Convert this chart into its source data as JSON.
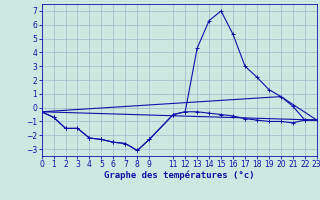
{
  "title": "Graphe des températures (°c)",
  "background_color": "#cce8e0",
  "grid_color": "#99bbcc",
  "line_color": "#1111aa",
  "xlim": [
    0,
    23
  ],
  "ylim": [
    -3.5,
    7.5
  ],
  "yticks": [
    -3,
    -2,
    -1,
    0,
    1,
    2,
    3,
    4,
    5,
    6,
    7
  ],
  "xticks": [
    0,
    1,
    2,
    3,
    4,
    5,
    6,
    7,
    8,
    9,
    11,
    12,
    13,
    14,
    15,
    16,
    17,
    18,
    19,
    20,
    21,
    22,
    23
  ],
  "xtick_labels": [
    "0",
    "1",
    "2",
    "3",
    "4",
    "5",
    "6",
    "7",
    "8",
    "9",
    "11",
    "12",
    "13",
    "14",
    "15",
    "16",
    "17",
    "18",
    "19",
    "20",
    "21",
    "22",
    "23"
  ],
  "curve1_x": [
    0,
    1,
    2,
    3,
    4,
    5,
    6,
    7,
    8,
    9,
    11,
    12,
    13,
    14,
    15,
    16,
    17,
    18,
    19,
    20,
    21,
    22,
    23
  ],
  "curve1_y": [
    -0.3,
    -0.7,
    -1.5,
    -1.5,
    -2.2,
    -2.3,
    -2.5,
    -2.6,
    -3.1,
    -2.3,
    -0.5,
    -0.3,
    4.3,
    6.3,
    7.0,
    5.3,
    3.0,
    2.2,
    1.3,
    0.8,
    0.1,
    -0.9,
    -0.9
  ],
  "curve2_x": [
    0,
    1,
    2,
    3,
    4,
    5,
    6,
    7,
    8,
    9,
    11,
    12,
    13,
    14,
    15,
    16,
    17,
    18,
    19,
    20,
    21,
    22,
    23
  ],
  "curve2_y": [
    -0.3,
    -0.7,
    -1.5,
    -1.5,
    -2.2,
    -2.3,
    -2.5,
    -2.6,
    -3.1,
    -2.3,
    -0.5,
    -0.3,
    -0.3,
    -0.4,
    -0.5,
    -0.6,
    -0.8,
    -0.9,
    -1.0,
    -1.0,
    -1.1,
    -0.9,
    -0.9
  ],
  "curve3_x": [
    0,
    23
  ],
  "curve3_y": [
    -0.3,
    -0.9
  ],
  "curve4_x": [
    0,
    20,
    23
  ],
  "curve4_y": [
    -0.3,
    0.8,
    -0.9
  ]
}
